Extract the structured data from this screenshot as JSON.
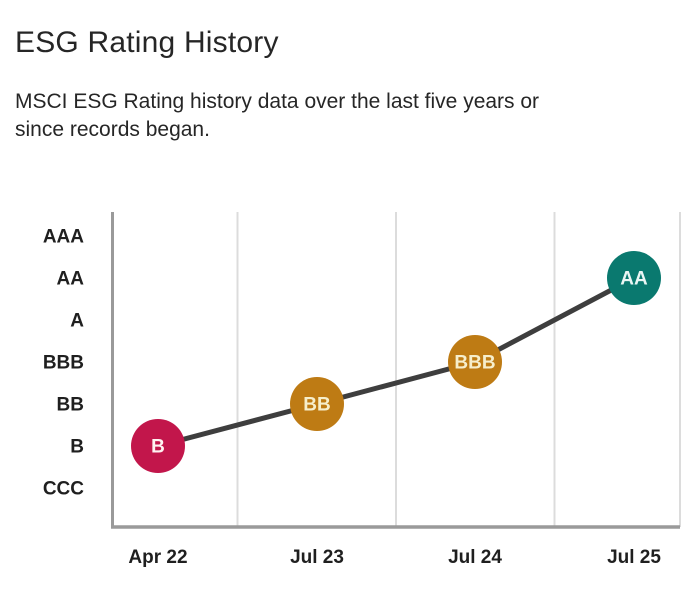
{
  "page": {
    "title": "ESG Rating History",
    "subtitle_lines": [
      "MSCI ESG Rating history data over the last five years or",
      "since records began."
    ]
  },
  "chart_data": {
    "type": "line",
    "title": "ESG Rating History",
    "categories": [
      "Apr 22",
      "Jul 23",
      "Jul 24",
      "Jul 25"
    ],
    "values": [
      "B",
      "BB",
      "BBB",
      "AA"
    ],
    "y_ticks_top_to_bottom": [
      "AAA",
      "AA",
      "A",
      "BBB",
      "BB",
      "B",
      "CCC"
    ],
    "points": [
      {
        "category": "Apr 22",
        "rating": "B",
        "color": "#C2164B",
        "label_color": "#FFF3F2"
      },
      {
        "category": "Jul 23",
        "rating": "BB",
        "color": "#BE7B14",
        "label_color": "#F6EECB"
      },
      {
        "category": "Jul 24",
        "rating": "BBB",
        "color": "#BE7B14",
        "label_color": "#F6EECB"
      },
      {
        "category": "Jul 25",
        "rating": "AA",
        "color": "#0A796F",
        "label_color": "#EAF6F4"
      }
    ],
    "line_color": "#3E3E3E",
    "axis_color": "#9A9A9A",
    "grid_color": "#DCDCDC",
    "tick_label_color": "#1F1F1F",
    "grid": "vertical-only",
    "legend": "none",
    "xlabel": "",
    "ylabel": ""
  }
}
